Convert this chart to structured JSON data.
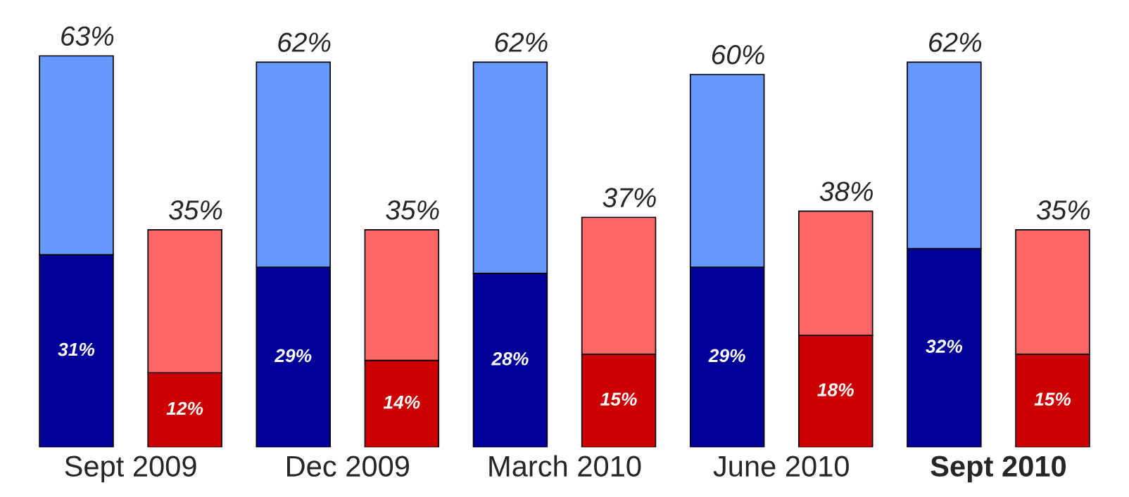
{
  "chart_data": {
    "type": "bar",
    "stacked": true,
    "categories": [
      null,
      null,
      null,
      null,
      null,
      null,
      null,
      null,
      null,
      null
    ],
    "series": [
      {
        "colors": [
          "#000099",
          "#cc0000",
          "#000099",
          "#cc0000",
          "#000099",
          "#cc0000",
          "#000099",
          "#cc0000",
          "#000099",
          "#cc0000"
        ],
        "values": [
          31,
          12,
          29,
          14,
          28,
          15,
          29,
          18,
          32,
          15
        ],
        "value_labels": [
          "31%",
          "12%",
          "29%",
          "14%",
          "28%",
          "15%",
          "29%",
          "18%",
          "32%",
          "15%"
        ]
      },
      {
        "colors": [
          "#6699ff",
          "#ff6666",
          "#6699ff",
          "#ff6666",
          "#6699ff",
          "#ff6666",
          "#6699ff",
          "#ff6666",
          "#6699ff",
          "#ff6666"
        ],
        "values": [
          32,
          23,
          33,
          21,
          34,
          22,
          31,
          20,
          30,
          20
        ]
      }
    ],
    "totals": [
      "63%",
      "35%",
      "62%",
      "35%",
      "62%",
      "37%",
      "60%",
      "38%",
      "62%",
      "35%"
    ],
    "annotations": [
      "Sept 2009",
      "Dec 2009",
      "March 2010",
      "June 2010",
      "Sept 2010"
    ],
    "legend": false,
    "grid": false
  }
}
